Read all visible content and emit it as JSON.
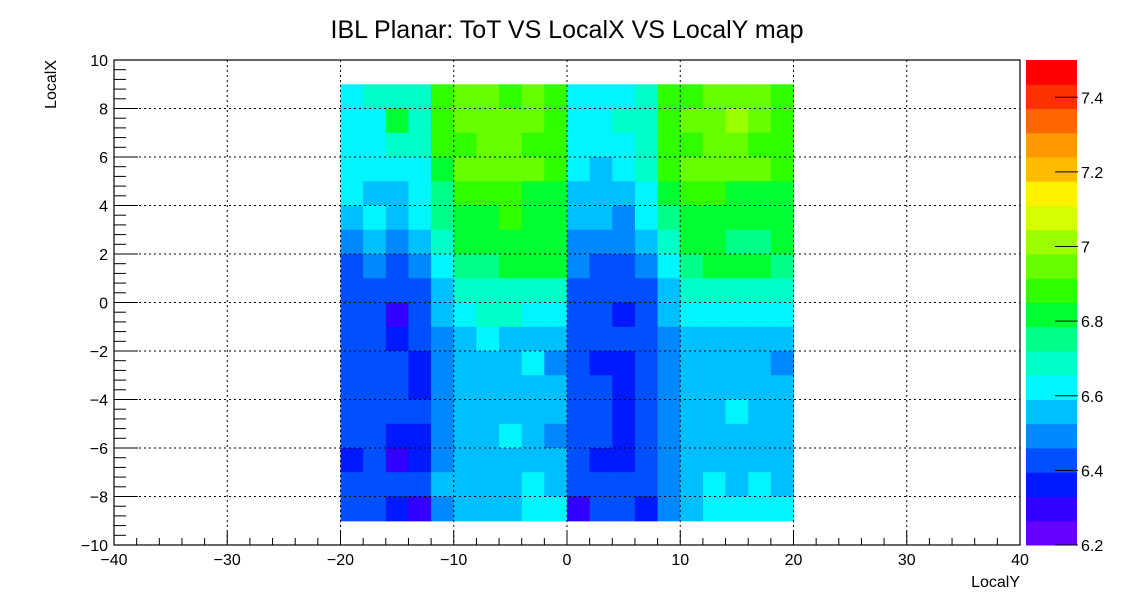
{
  "chart_data": {
    "type": "heatmap",
    "title": "IBL Planar: ToT VS LocalX VS LocalY map",
    "xlabel": "LocalY",
    "ylabel": "LocalX",
    "xlim": [
      -40,
      40
    ],
    "ylim": [
      -10,
      10
    ],
    "x_ticks": [
      -40,
      -30,
      -20,
      -10,
      0,
      10,
      20,
      30,
      40
    ],
    "x_tick_labels": [
      "−40",
      "−30",
      "−20",
      "−10",
      "0",
      "10",
      "20",
      "30",
      "40"
    ],
    "y_ticks": [
      -10,
      -8,
      -6,
      -4,
      -2,
      0,
      2,
      4,
      6,
      8,
      10
    ],
    "y_tick_labels": [
      "−10",
      "−8",
      "−6",
      "−4",
      "−2",
      "0",
      "2",
      "4",
      "6",
      "8",
      "10"
    ],
    "grid": true,
    "z_range": [
      6.2,
      7.5
    ],
    "z_ticks": [
      6.2,
      6.4,
      6.6,
      6.8,
      7.0,
      7.2,
      7.4
    ],
    "z_tick_labels": [
      "6.2",
      "6.4",
      "6.6",
      "6.8",
      "7",
      "7.2",
      "7.4"
    ],
    "colormap": [
      "#6600ff",
      "#3300ff",
      "#0019ff",
      "#0050ff",
      "#0088ff",
      "#00bfff",
      "#00f5ff",
      "#00ffc8",
      "#00ff88",
      "#00ff30",
      "#30ff00",
      "#66ff00",
      "#9cff00",
      "#d4ff00",
      "#fff200",
      "#ffbb00",
      "#ff9900",
      "#ff6600",
      "#ff3000",
      "#ff0000"
    ],
    "x_bin_edges": [
      -20,
      -18,
      -16,
      -14,
      -12,
      -10,
      -8,
      -6,
      -4,
      -2,
      0,
      2,
      4,
      6,
      8,
      10,
      12,
      14,
      16,
      18,
      20
    ],
    "y_bin_edges": [
      -9,
      -8,
      -7,
      -6,
      -5,
      -4,
      -3,
      -2,
      -1,
      0,
      1,
      2,
      3,
      4,
      5,
      6,
      7,
      8,
      9
    ],
    "z_rows_top_to_bottom": [
      [
        6.65,
        6.66,
        6.72,
        6.7,
        6.86,
        6.92,
        6.94,
        6.9,
        6.92,
        6.87,
        6.62,
        6.64,
        6.64,
        6.7,
        6.88,
        6.9,
        6.94,
        6.96,
        6.92,
        6.88
      ],
      [
        6.64,
        6.65,
        6.8,
        6.68,
        6.9,
        6.94,
        6.92,
        6.96,
        6.92,
        6.86,
        6.63,
        6.62,
        6.66,
        6.72,
        6.9,
        6.92,
        6.92,
        6.98,
        6.92,
        6.9
      ],
      [
        6.63,
        6.64,
        6.7,
        6.66,
        6.88,
        6.9,
        6.92,
        6.92,
        6.9,
        6.88,
        6.62,
        6.6,
        6.65,
        6.7,
        6.86,
        6.9,
        6.92,
        6.94,
        6.9,
        6.88
      ],
      [
        6.6,
        6.62,
        6.64,
        6.62,
        6.84,
        6.92,
        6.94,
        6.92,
        6.94,
        6.86,
        6.6,
        6.58,
        6.62,
        6.68,
        6.86,
        6.92,
        6.94,
        6.92,
        6.92,
        6.86
      ],
      [
        6.6,
        6.56,
        6.58,
        6.62,
        6.78,
        6.9,
        6.88,
        6.86,
        6.84,
        6.84,
        6.58,
        6.56,
        6.58,
        6.62,
        6.8,
        6.86,
        6.86,
        6.84,
        6.8,
        6.82
      ],
      [
        6.58,
        6.6,
        6.56,
        6.62,
        6.74,
        6.84,
        6.84,
        6.86,
        6.82,
        6.8,
        6.56,
        6.54,
        6.52,
        6.6,
        6.78,
        6.82,
        6.84,
        6.82,
        6.82,
        6.8
      ],
      [
        6.52,
        6.54,
        6.52,
        6.56,
        6.7,
        6.8,
        6.82,
        6.8,
        6.82,
        6.8,
        6.52,
        6.5,
        6.5,
        6.56,
        6.72,
        6.8,
        6.8,
        6.78,
        6.78,
        6.8
      ],
      [
        6.46,
        6.5,
        6.46,
        6.48,
        6.64,
        6.76,
        6.78,
        6.8,
        6.8,
        6.82,
        6.48,
        6.44,
        6.46,
        6.52,
        6.64,
        6.78,
        6.82,
        6.8,
        6.82,
        6.78
      ],
      [
        6.44,
        6.44,
        6.4,
        6.44,
        6.58,
        6.66,
        6.7,
        6.72,
        6.72,
        6.7,
        6.44,
        6.4,
        6.42,
        6.46,
        6.56,
        6.66,
        6.68,
        6.66,
        6.7,
        6.68
      ],
      [
        6.42,
        6.4,
        6.32,
        6.44,
        6.56,
        6.64,
        6.66,
        6.66,
        6.64,
        6.62,
        6.46,
        6.4,
        6.36,
        6.44,
        6.54,
        6.62,
        6.64,
        6.62,
        6.62,
        6.6
      ],
      [
        6.44,
        6.42,
        6.38,
        6.42,
        6.5,
        6.56,
        6.6,
        6.56,
        6.58,
        6.56,
        6.44,
        6.42,
        6.4,
        6.44,
        6.5,
        6.54,
        6.58,
        6.58,
        6.56,
        6.54
      ],
      [
        6.4,
        6.44,
        6.4,
        6.38,
        6.48,
        6.54,
        6.58,
        6.56,
        6.6,
        6.52,
        6.4,
        6.38,
        6.38,
        6.42,
        6.5,
        6.56,
        6.56,
        6.58,
        6.56,
        6.52
      ],
      [
        6.4,
        6.42,
        6.4,
        6.38,
        6.5,
        6.54,
        6.56,
        6.58,
        6.58,
        6.56,
        6.42,
        6.4,
        6.38,
        6.42,
        6.52,
        6.56,
        6.58,
        6.56,
        6.58,
        6.56
      ],
      [
        6.42,
        6.4,
        6.4,
        6.4,
        6.5,
        6.56,
        6.58,
        6.54,
        6.58,
        6.54,
        6.44,
        6.42,
        6.34,
        6.4,
        6.52,
        6.56,
        6.58,
        6.6,
        6.58,
        6.56
      ],
      [
        6.4,
        6.4,
        6.38,
        6.38,
        6.52,
        6.56,
        6.54,
        6.6,
        6.56,
        6.52,
        6.4,
        6.4,
        6.38,
        6.42,
        6.5,
        6.56,
        6.58,
        6.56,
        6.58,
        6.54
      ],
      [
        6.38,
        6.4,
        6.32,
        6.36,
        6.52,
        6.56,
        6.56,
        6.56,
        6.58,
        6.54,
        6.4,
        6.38,
        6.38,
        6.4,
        6.5,
        6.54,
        6.56,
        6.58,
        6.58,
        6.56
      ],
      [
        6.42,
        6.4,
        6.4,
        6.4,
        6.54,
        6.56,
        6.58,
        6.56,
        6.6,
        6.56,
        6.44,
        6.42,
        6.4,
        6.42,
        6.52,
        6.56,
        6.6,
        6.58,
        6.6,
        6.58
      ],
      [
        6.4,
        6.4,
        6.38,
        6.3,
        6.52,
        6.56,
        6.58,
        6.58,
        6.62,
        6.6,
        6.3,
        6.4,
        6.4,
        6.38,
        6.52,
        6.58,
        6.6,
        6.62,
        6.6,
        6.6
      ]
    ]
  }
}
